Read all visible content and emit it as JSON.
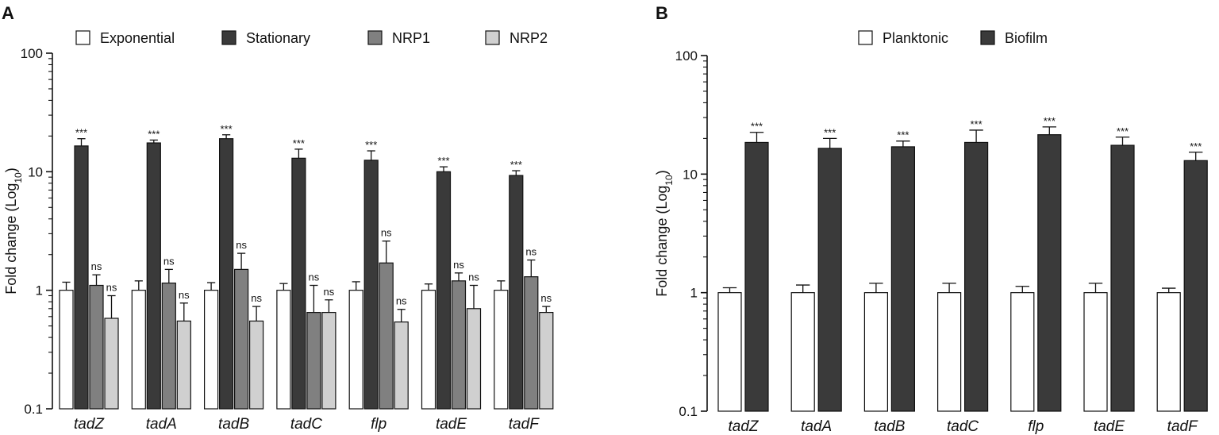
{
  "chart_data": [
    {
      "type": "bar",
      "panel": "A",
      "ylabel": "Fold change (Log",
      "ylabel_sub": "10",
      "ylabel_close": ")",
      "yscale": "log",
      "ylim": [
        0.1,
        100
      ],
      "yticks": [
        {
          "value": 0.1,
          "label": "0.1"
        },
        {
          "value": 1,
          "label": "1"
        },
        {
          "value": 10,
          "label": "10"
        },
        {
          "value": 100,
          "label": "100"
        }
      ],
      "legend_position": "top",
      "categories": [
        "tadZ",
        "tadA",
        "tadB",
        "tadC",
        "flp",
        "tadE",
        "tadF"
      ],
      "series": [
        {
          "name": "Exponential",
          "color": "#ffffff",
          "values": [
            1.0,
            1.0,
            1.0,
            1.0,
            1.0,
            1.0,
            1.0
          ],
          "error": [
            0.17,
            0.2,
            0.16,
            0.14,
            0.18,
            0.13,
            0.2
          ],
          "significance": [
            "",
            "",
            "",
            "",
            "",
            "",
            ""
          ]
        },
        {
          "name": "Stationary",
          "color": "#3a3a3a",
          "values": [
            16.5,
            17.5,
            19.0,
            13.0,
            12.5,
            10.0,
            9.3
          ],
          "error": [
            2.5,
            1.0,
            1.5,
            2.5,
            2.5,
            1.0,
            0.9
          ],
          "significance": [
            "***",
            "***",
            "***",
            "***",
            "***",
            "***",
            "***"
          ]
        },
        {
          "name": "NRP1",
          "color": "#808080",
          "values": [
            1.1,
            1.15,
            1.5,
            0.65,
            1.7,
            1.2,
            1.3
          ],
          "error": [
            0.25,
            0.35,
            0.55,
            0.45,
            0.9,
            0.2,
            0.5
          ],
          "significance": [
            "ns",
            "ns",
            "ns",
            "ns",
            "ns",
            "ns",
            "ns"
          ]
        },
        {
          "name": "NRP2",
          "color": "#d0d0d0",
          "values": [
            0.58,
            0.55,
            0.55,
            0.65,
            0.54,
            0.7,
            0.65
          ],
          "error": [
            0.32,
            0.23,
            0.18,
            0.18,
            0.15,
            0.4,
            0.08
          ],
          "significance": [
            "ns",
            "ns",
            "ns",
            "ns",
            "ns",
            "ns",
            "ns"
          ]
        }
      ]
    },
    {
      "type": "bar",
      "panel": "B",
      "ylabel": "Fold change (Log",
      "ylabel_sub": "10",
      "ylabel_close": ")",
      "yscale": "log",
      "ylim": [
        0.1,
        100
      ],
      "yticks": [
        {
          "value": 0.1,
          "label": "0.1"
        },
        {
          "value": 1,
          "label": "1"
        },
        {
          "value": 10,
          "label": "10"
        },
        {
          "value": 100,
          "label": "100"
        }
      ],
      "legend_position": "top",
      "categories": [
        "tadZ",
        "tadA",
        "tadB",
        "tadC",
        "flp",
        "tadE",
        "tadF"
      ],
      "series": [
        {
          "name": "Planktonic",
          "color": "#ffffff",
          "values": [
            1.0,
            1.0,
            1.0,
            1.0,
            1.0,
            1.0,
            1.0
          ],
          "error": [
            0.1,
            0.16,
            0.2,
            0.2,
            0.13,
            0.2,
            0.09
          ],
          "significance": [
            "",
            "",
            "",
            "",
            "",
            "",
            ""
          ]
        },
        {
          "name": "Biofilm",
          "color": "#3a3a3a",
          "values": [
            18.5,
            16.5,
            17.0,
            18.5,
            21.5,
            17.5,
            13.0
          ],
          "error": [
            4.0,
            3.5,
            2.0,
            5.0,
            3.5,
            3.0,
            2.3
          ],
          "significance": [
            "***",
            "***",
            "***",
            "***",
            "***",
            "***",
            "***"
          ]
        }
      ]
    }
  ]
}
